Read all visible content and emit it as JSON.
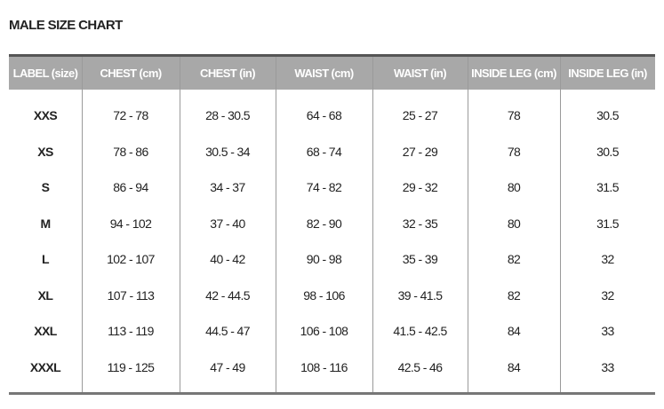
{
  "title": "MALE SIZE CHART",
  "table": {
    "header": [
      "LABEL (size)",
      "CHEST (cm)",
      "CHEST (in)",
      "WAIST (cm)",
      "WAIST (in)",
      "INSIDE LEG (cm)",
      "INSIDE LEG (in)"
    ],
    "rows": [
      [
        "XXS",
        "72 - 78",
        "28 - 30.5",
        "64 - 68",
        "25 - 27",
        "78",
        "30.5"
      ],
      [
        "XS",
        "78 - 86",
        "30.5 - 34",
        "68 - 74",
        "27 - 29",
        "78",
        "30.5"
      ],
      [
        "S",
        "86 - 94",
        "34 - 37",
        "74 - 82",
        "29 - 32",
        "80",
        "31.5"
      ],
      [
        "M",
        "94 - 102",
        "37 - 40",
        "82 - 90",
        "32 - 35",
        "80",
        "31.5"
      ],
      [
        "L",
        "102 - 107",
        "40 - 42",
        "90 - 98",
        "35 - 39",
        "82",
        "32"
      ],
      [
        "XL",
        "107 - 113",
        "42 - 44.5",
        "98 - 106",
        "39 - 41.5",
        "82",
        "32"
      ],
      [
        "XXL",
        "113 - 119",
        "44.5 - 47",
        "106 - 108",
        "41.5 - 42.5",
        "84",
        "33"
      ],
      [
        "XXXL",
        "119 - 125",
        "47 - 49",
        "108 - 116",
        "42.5 - 46",
        "84",
        "33"
      ]
    ]
  }
}
